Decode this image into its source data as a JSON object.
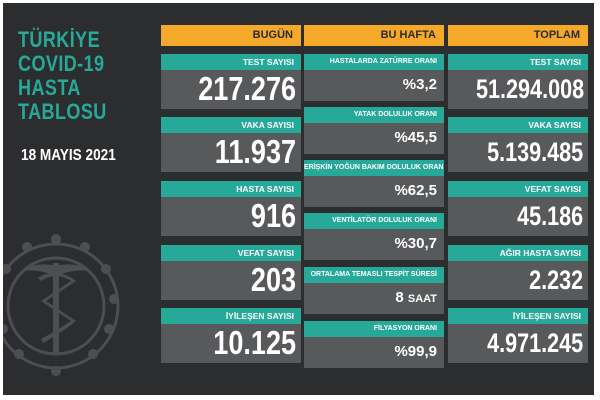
{
  "title_lines": [
    "TÜRKİYE",
    "COVID-19",
    "HASTA",
    "TABLOSU"
  ],
  "date": "18 MAYIS 2021",
  "columns": {
    "today": {
      "header": "BUGÜN",
      "cards": [
        {
          "label": "TEST SAYISI",
          "value": "217.276"
        },
        {
          "label": "VAKA SAYISI",
          "value": "11.937"
        },
        {
          "label": "HASTA SAYISI",
          "value": "916"
        },
        {
          "label": "VEFAT SAYISI",
          "value": "203"
        },
        {
          "label": "İYİLEŞEN SAYISI",
          "value": "10.125"
        }
      ]
    },
    "week": {
      "header": "BU HAFTA",
      "cards": [
        {
          "label": "HASTALARDA ZATÜRRE ORANI",
          "value": "%3,2"
        },
        {
          "label": "YATAK DOLULUK ORANI",
          "value": "%45,5"
        },
        {
          "label": "ERİŞKİN YOĞUN BAKIM DOLULUK ORANI",
          "value": "%62,5"
        },
        {
          "label": "VENTİLATÖR DOLULUK ORANI",
          "value": "%30,7"
        },
        {
          "label": "ORTALAMA TEMASLI TESPİT SÜRESİ",
          "value": "8",
          "unit": "SAAT"
        },
        {
          "label": "FİLYASYON ORANI",
          "value": "%99,9"
        }
      ]
    },
    "total": {
      "header": "TOPLAM",
      "cards": [
        {
          "label": "TEST SAYISI",
          "value": "51.294.008"
        },
        {
          "label": "VAKA SAYISI",
          "value": "5.139.485"
        },
        {
          "label": "VEFAT SAYISI",
          "value": "45.186"
        },
        {
          "label": "AĞIR HASTA SAYISI",
          "value": "2.232"
        },
        {
          "label": "İYİLEŞEN SAYISI",
          "value": "4.971.245"
        }
      ]
    }
  },
  "colors": {
    "background": "#2c2d2f",
    "accent_teal": "#27a99a",
    "header_orange": "#f4a92b",
    "card_gray": "#58595b"
  },
  "icons": {
    "emblem": "ministry-of-health-emblem"
  }
}
